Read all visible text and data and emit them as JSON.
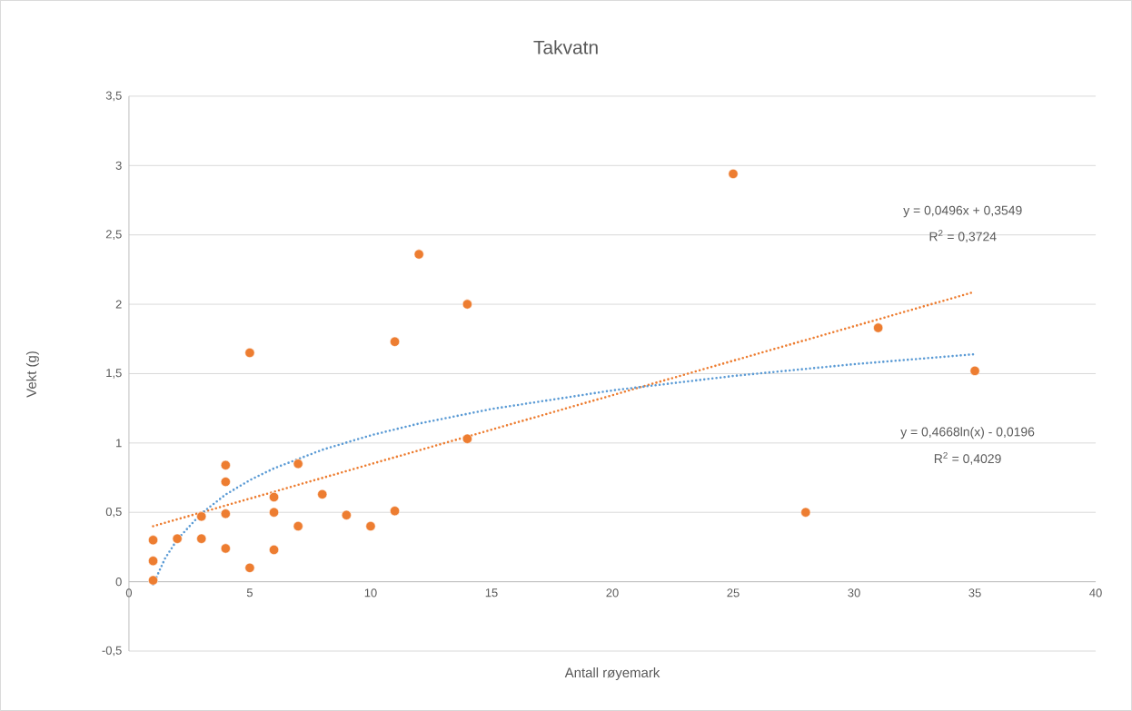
{
  "chart_data": {
    "type": "scatter",
    "title": "Takvatn",
    "xlabel": "Antall røyemark",
    "ylabel": "Vekt (g)",
    "series": [
      {
        "color": "#ed7d31",
        "marker": "circle",
        "x": [
          1,
          1,
          1,
          2,
          3,
          3,
          4,
          4,
          4,
          4,
          5,
          5,
          6,
          6,
          6,
          7,
          7,
          8,
          9,
          10,
          11,
          11,
          12,
          14,
          14,
          25,
          28,
          31,
          35
        ],
        "values": [
          0.3,
          0.15,
          0.01,
          0.31,
          0.47,
          0.31,
          0.84,
          0.72,
          0.49,
          0.24,
          1.65,
          0.1,
          0.61,
          0.5,
          0.23,
          0.85,
          0.4,
          0.63,
          0.48,
          0.4,
          1.73,
          0.51,
          2.36,
          2.0,
          1.03,
          2.94,
          0.5,
          1.83,
          1.52
        ]
      },
      {
        "type": "line",
        "color": "#ed7d31",
        "line_style": "dotted",
        "marker": "none",
        "x": [
          1,
          35
        ],
        "values": [
          0.4,
          2.09
        ]
      },
      {
        "type": "line",
        "color": "#5b9bd5",
        "line_style": "dotted",
        "marker": "none",
        "x": [
          1,
          1.5,
          2,
          3,
          4,
          5,
          6,
          8,
          10,
          12,
          15,
          20,
          25,
          30,
          35
        ],
        "values": [
          -0.02,
          0.17,
          0.304,
          0.493,
          0.628,
          0.732,
          0.817,
          0.951,
          1.055,
          1.14,
          1.245,
          1.379,
          1.483,
          1.568,
          1.64
        ]
      }
    ],
    "annotations": [
      "y = 0,0496x + 0,3549",
      "R$^{2}$ = 0,3724",
      "y = 0,4668ln(x) - 0,0196",
      "R$^{2}$ = 0,4029"
    ],
    "xlim": [
      0,
      40
    ],
    "xticks": [
      0,
      5,
      10,
      15,
      20,
      25,
      30,
      35,
      40
    ],
    "ylim": [
      -0.5,
      3.5
    ],
    "yticks": [
      {
        "value": -0.5,
        "label": "-0,5"
      },
      0,
      {
        "value": 0.5,
        "label": "0,5"
      },
      1,
      {
        "value": 1.5,
        "label": "1,5"
      },
      2,
      {
        "value": 2.5,
        "label": "2,5"
      },
      3,
      {
        "value": 3.5,
        "label": "3,5"
      }
    ],
    "grid": "y",
    "legend": false
  }
}
